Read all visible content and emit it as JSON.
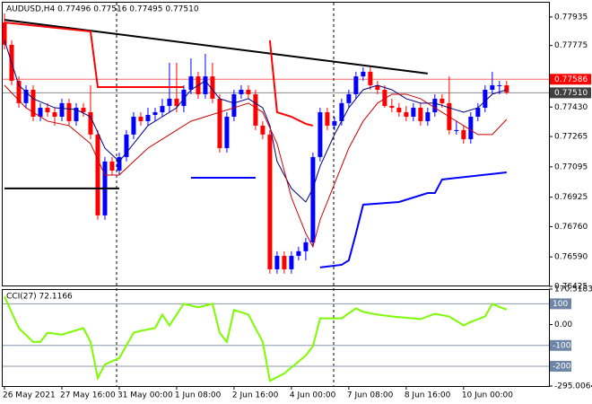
{
  "chart_data": [
    {
      "type": "candlestick",
      "title": "AUDUSD,H4 0.77496 0.77516 0.77495 0.77510",
      "up_color": "#0000ff",
      "down_color": "#ff0000",
      "xlim": [
        -0.25,
        75.9
      ],
      "ylim": [
        0.7643,
        0.78015
      ],
      "open": [
        0.77904,
        0.77779,
        0.77577,
        0.77452,
        0.77527,
        0.77376,
        0.77426,
        0.77401,
        0.77376,
        0.77452,
        0.77351,
        0.77426,
        0.77401,
        0.77276,
        0.76823,
        0.77125,
        0.77074,
        0.7715,
        0.77276,
        0.77376,
        0.77351,
        0.77386,
        0.77401,
        0.77436,
        0.77477,
        0.77436,
        0.77527,
        0.77602,
        0.77502,
        0.77602,
        0.77477,
        0.772,
        0.77376,
        0.77502,
        0.77527,
        0.77502,
        0.77326,
        0.77276,
        0.76521,
        0.76596,
        0.76521,
        0.76596,
        0.76622,
        0.76672,
        0.7715,
        0.77401,
        0.77326,
        0.77351,
        0.77452,
        0.77502,
        0.77602,
        0.77628,
        0.77552,
        0.77527,
        0.77436,
        0.77426,
        0.77401,
        0.77376,
        0.77426,
        0.77351,
        0.77401,
        0.77477,
        0.77452,
        0.77301,
        0.77301,
        0.7725,
        0.77376,
        0.77426,
        0.77527,
        0.77552,
        0.77552
      ],
      "high": [
        0.77955,
        0.77804,
        0.77602,
        0.77552,
        0.77552,
        0.77452,
        0.77452,
        0.77426,
        0.77477,
        0.77477,
        0.77452,
        0.77452,
        0.77552,
        0.77301,
        0.7715,
        0.7715,
        0.77175,
        0.77301,
        0.77401,
        0.77401,
        0.77426,
        0.77426,
        0.77477,
        0.77678,
        0.77678,
        0.77552,
        0.77703,
        0.77628,
        0.77728,
        0.77678,
        0.77502,
        0.77401,
        0.77527,
        0.77552,
        0.77552,
        0.77527,
        0.77351,
        0.77301,
        0.76622,
        0.76622,
        0.76622,
        0.76647,
        0.76697,
        0.77175,
        0.77426,
        0.77426,
        0.77376,
        0.77477,
        0.77527,
        0.77628,
        0.77653,
        0.77653,
        0.77577,
        0.77552,
        0.77477,
        0.77452,
        0.77436,
        0.77452,
        0.77452,
        0.77426,
        0.77502,
        0.77502,
        0.77602,
        0.77351,
        0.77326,
        0.77401,
        0.77452,
        0.77552,
        0.77628,
        0.77577,
        0.77577
      ],
      "low": [
        0.77753,
        0.77552,
        0.77426,
        0.77426,
        0.77351,
        0.77351,
        0.77376,
        0.77326,
        0.77351,
        0.77326,
        0.77326,
        0.77376,
        0.7725,
        0.76798,
        0.76798,
        0.77049,
        0.77049,
        0.77125,
        0.7725,
        0.77326,
        0.77326,
        0.77351,
        0.77376,
        0.77401,
        0.77401,
        0.77401,
        0.77502,
        0.77477,
        0.77477,
        0.77452,
        0.77175,
        0.77175,
        0.77351,
        0.77477,
        0.77477,
        0.77301,
        0.7725,
        0.76496,
        0.76496,
        0.76496,
        0.76496,
        0.76571,
        0.76571,
        0.76647,
        0.77125,
        0.77301,
        0.77301,
        0.77326,
        0.77426,
        0.77477,
        0.77577,
        0.77527,
        0.77502,
        0.77426,
        0.77401,
        0.77376,
        0.77351,
        0.77351,
        0.77326,
        0.77326,
        0.77376,
        0.77426,
        0.77276,
        0.77276,
        0.77225,
        0.77225,
        0.77351,
        0.77401,
        0.77502,
        0.77502,
        0.77502
      ],
      "close": [
        0.77779,
        0.77577,
        0.77452,
        0.77527,
        0.77376,
        0.77426,
        0.77401,
        0.77376,
        0.77452,
        0.77351,
        0.77426,
        0.77401,
        0.77276,
        0.76823,
        0.77125,
        0.77074,
        0.7715,
        0.77276,
        0.77376,
        0.77351,
        0.77386,
        0.77401,
        0.77436,
        0.77477,
        0.77436,
        0.77527,
        0.77602,
        0.77502,
        0.77602,
        0.77477,
        0.772,
        0.77376,
        0.77502,
        0.77527,
        0.77502,
        0.77326,
        0.77276,
        0.76521,
        0.76596,
        0.76521,
        0.76596,
        0.76622,
        0.76672,
        0.7715,
        0.77401,
        0.77326,
        0.77351,
        0.77452,
        0.77502,
        0.77602,
        0.77628,
        0.77552,
        0.77527,
        0.77436,
        0.77426,
        0.77401,
        0.77376,
        0.77426,
        0.77351,
        0.77401,
        0.77477,
        0.77452,
        0.77301,
        0.77301,
        0.7725,
        0.77376,
        0.77426,
        0.77527,
        0.77552,
        0.77552,
        0.77512
      ],
      "overlays": [
        {
          "color": "#000000",
          "width": 2,
          "x": [
            0,
            59
          ],
          "values": [
            0.77919,
            0.77618
          ]
        },
        {
          "color": "#000000",
          "width": 2,
          "x": [
            0,
            16
          ],
          "values": [
            0.76974,
            0.76974
          ]
        },
        {
          "color": "#ff0000",
          "width": 2,
          "x": [
            0,
            12,
            13,
            25
          ],
          "values": [
            0.77904,
            0.77854,
            0.77542,
            0.77542
          ]
        },
        {
          "color": "#ff0000",
          "width": 2,
          "x": [
            37,
            38,
            40,
            42,
            43
          ],
          "values": [
            0.77804,
            0.77401,
            0.77376,
            0.77336,
            0.77326
          ]
        },
        {
          "color": "#0000ff",
          "width": 2,
          "x": [
            26,
            35
          ],
          "values": [
            0.77034,
            0.77034
          ]
        },
        {
          "color": "#0000ff",
          "width": 2,
          "x": [
            44,
            47,
            48,
            49,
            50,
            55,
            59,
            60,
            61,
            70
          ],
          "values": [
            0.76531,
            0.76546,
            0.76571,
            0.76722,
            0.76883,
            0.76898,
            0.76948,
            0.76948,
            0.77024,
            0.77064
          ]
        },
        {
          "color": "#000080",
          "width": 1,
          "x": [
            0,
            2,
            4,
            7,
            10,
            12,
            14,
            16,
            18,
            20,
            22,
            24,
            26,
            28,
            30,
            32,
            34,
            36,
            37,
            38,
            40,
            42,
            43,
            44,
            46,
            48,
            50,
            52,
            54,
            56,
            58,
            60,
            62,
            64,
            66,
            68,
            70
          ],
          "values": [
            0.77804,
            0.77552,
            0.77477,
            0.77426,
            0.77416,
            0.77376,
            0.772,
            0.77125,
            0.77225,
            0.77326,
            0.77376,
            0.77426,
            0.77527,
            0.77577,
            0.77477,
            0.77452,
            0.77477,
            0.77426,
            0.77326,
            0.77125,
            0.76974,
            0.76898,
            0.76974,
            0.77099,
            0.77276,
            0.77426,
            0.77527,
            0.77552,
            0.77527,
            0.77477,
            0.77452,
            0.77452,
            0.77426,
            0.77401,
            0.77426,
            0.77502,
            0.77527
          ]
        },
        {
          "color": "#cc0000",
          "width": 1,
          "x": [
            0,
            3,
            6,
            9,
            12,
            14,
            16,
            18,
            20,
            22,
            24,
            26,
            28,
            30,
            32,
            34,
            36,
            38,
            40,
            42,
            43,
            44,
            46,
            48,
            50,
            52,
            54,
            56,
            58,
            60,
            62,
            64,
            66,
            68,
            70
          ],
          "values": [
            0.77552,
            0.77426,
            0.77351,
            0.77326,
            0.77225,
            0.77049,
            0.77049,
            0.77125,
            0.772,
            0.7725,
            0.77301,
            0.77351,
            0.77376,
            0.77401,
            0.77426,
            0.77452,
            0.77401,
            0.77225,
            0.76923,
            0.76722,
            0.76647,
            0.76798,
            0.76999,
            0.772,
            0.77351,
            0.77452,
            0.77502,
            0.77502,
            0.77477,
            0.77426,
            0.77376,
            0.77326,
            0.77276,
            0.77276,
            0.77361
          ]
        }
      ],
      "levels": [
        {
          "value": 0.77586,
          "color": "#ff0000"
        },
        {
          "value": 0.7751,
          "label": "0.77510",
          "color": "#404040"
        }
      ],
      "yticks": [
        0.77935,
        0.77775,
        {
          "value": 0.7743,
          "label": "0.77430"
        },
        0.77265,
        0.77095,
        0.76925,
        {
          "value": 0.7676,
          "label": "0.76760"
        },
        {
          "value": 0.7659,
          "label": "0.76590"
        },
        0.76425
      ],
      "xticks": [
        {
          "value": 0,
          "label": "26 May 2021"
        },
        {
          "value": 8,
          "label": "27 May 16:00"
        },
        {
          "value": 16,
          "label": "31 May 00:00"
        },
        {
          "value": 24,
          "label": "1 Jun 08:00"
        },
        {
          "value": 32,
          "label": "2 Jun 16:00"
        },
        {
          "value": 40,
          "label": "4 Jun 00:00"
        },
        {
          "value": 48,
          "label": "7 Jun 08:00"
        },
        {
          "value": 56,
          "label": "8 Jun 16:00"
        },
        {
          "value": 64,
          "label": "10 Jun 00:00"
        }
      ]
    },
    {
      "type": "line",
      "title": "CCI(27) 72.1166",
      "color": "#7cfc00",
      "xlim": [
        -0.25,
        75.9
      ],
      "ylim": [
        -295.0064,
        170.5183
      ],
      "yticks": [
        170.5183,
        {
          "value": 0,
          "label": "0.00"
        },
        -295.0064
      ],
      "levels": [
        100,
        -100,
        -200
      ],
      "x": [
        0,
        2,
        4,
        5,
        6,
        8,
        11,
        12,
        13,
        14,
        16,
        18,
        19,
        21,
        22,
        23,
        25,
        27,
        29,
        30,
        31,
        32,
        34,
        36,
        37,
        39,
        42,
        43,
        44,
        47,
        49,
        50,
        52,
        54,
        57,
        58,
        60,
        62,
        64,
        65,
        67,
        68,
        69,
        70
      ],
      "values": [
        135,
        -17,
        -83,
        -83,
        -39,
        -48,
        -17,
        -83,
        -257,
        -191,
        -161,
        -39,
        -30,
        -17,
        48,
        -4,
        100,
        83,
        100,
        -39,
        -83,
        70,
        48,
        -83,
        -270,
        -235,
        -148,
        -104,
        30,
        30,
        78,
        61,
        48,
        39,
        30,
        26,
        52,
        39,
        -4,
        13,
        39,
        100,
        85,
        72.1166
      ]
    }
  ]
}
